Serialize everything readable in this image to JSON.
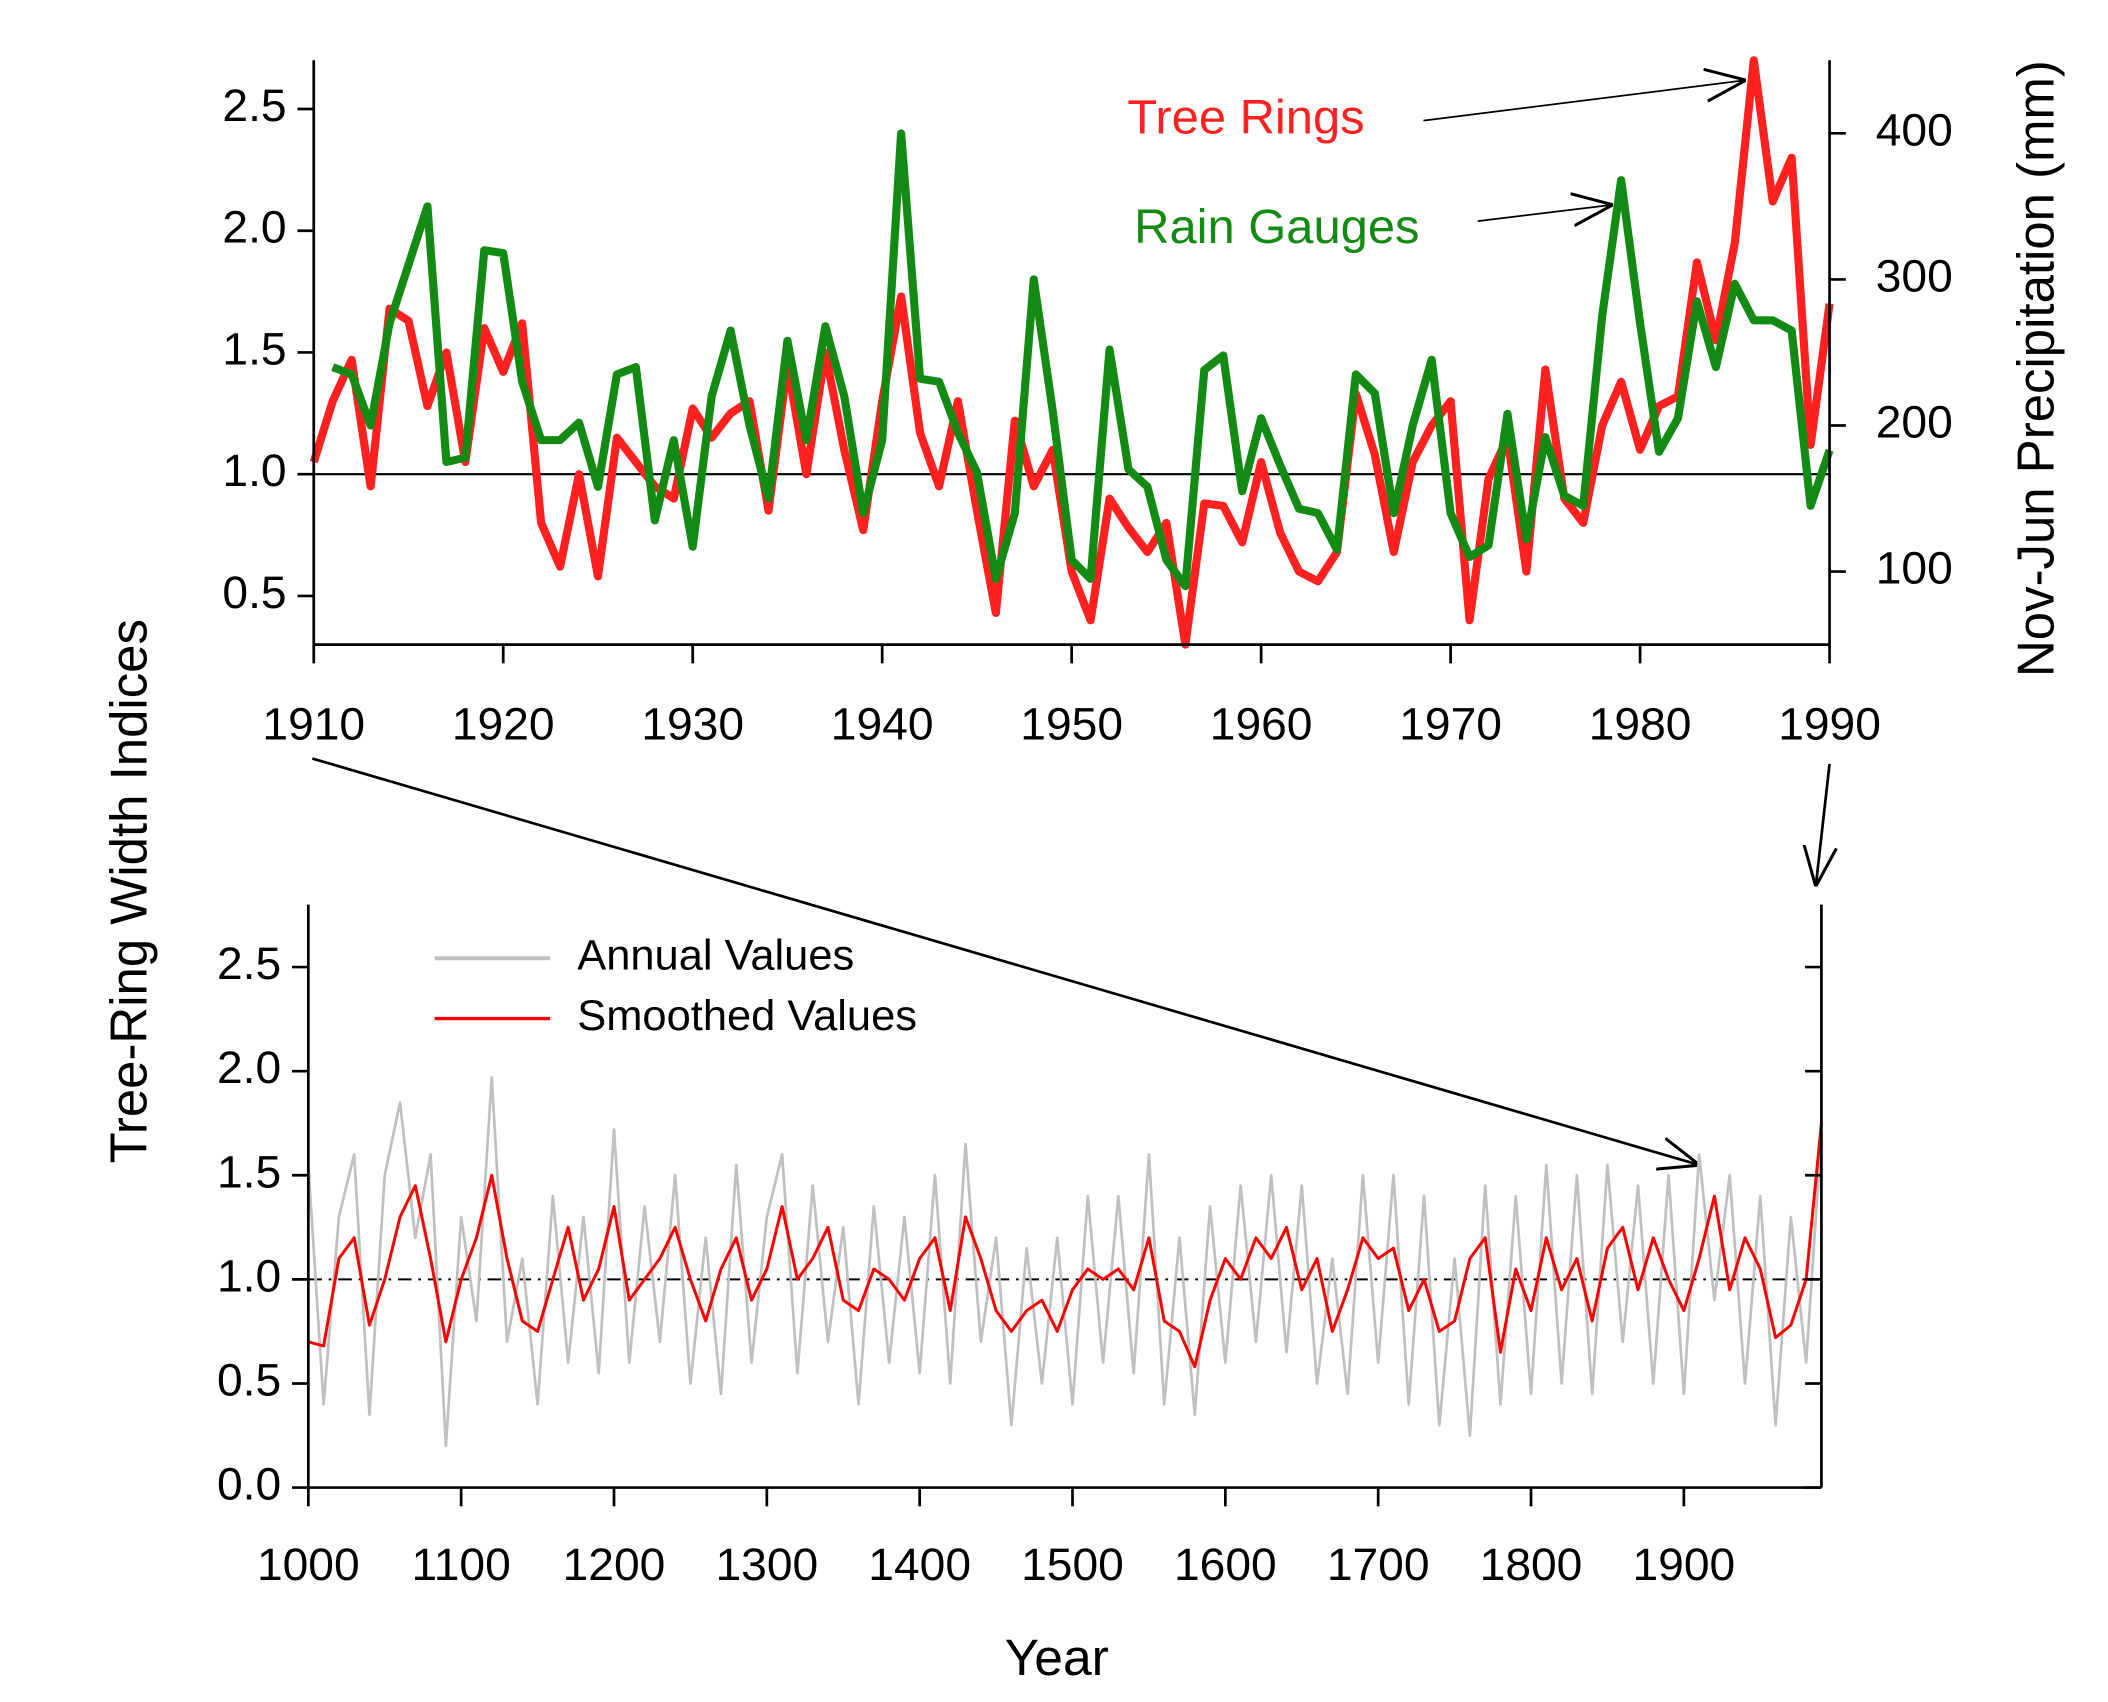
{
  "chart_data": [
    {
      "type": "line",
      "ylabel": "Tree-Ring Width Indices",
      "y2label": "Nov-Jun Precipitation (mm)",
      "xlim": [
        1910,
        1990
      ],
      "xticks": [
        1910,
        1920,
        1930,
        1940,
        1950,
        1960,
        1970,
        1980,
        1990
      ],
      "ylim": [
        0.3,
        2.7
      ],
      "yticks": [
        0.5,
        {
          "value": 1,
          "label": "1.0"
        },
        1.5,
        {
          "value": 2,
          "label": "2.0"
        },
        2.5
      ],
      "y2lim": [
        50,
        450
      ],
      "y2ticks": [
        100,
        200,
        300,
        400
      ],
      "hline": 1,
      "series": [
        {
          "name": "Tree Rings",
          "color": "#ff2020",
          "x": [
            1910,
            1911,
            1912,
            1913,
            1914,
            1915,
            1916,
            1917,
            1918,
            1919,
            1920,
            1921,
            1922,
            1923,
            1924,
            1925,
            1926,
            1927,
            1928,
            1929,
            1930,
            1931,
            1932,
            1933,
            1934,
            1935,
            1936,
            1937,
            1938,
            1939,
            1940,
            1941,
            1942,
            1943,
            1944,
            1945,
            1946,
            1947,
            1948,
            1949,
            1950,
            1951,
            1952,
            1953,
            1954,
            1955,
            1956,
            1957,
            1958,
            1959,
            1960,
            1961,
            1962,
            1963,
            1964,
            1965,
            1966,
            1967,
            1968,
            1969,
            1970,
            1971,
            1972,
            1973,
            1974,
            1975,
            1976,
            1977,
            1978,
            1979,
            1980,
            1981,
            1982,
            1983,
            1984,
            1985,
            1986,
            1987,
            1988,
            1989,
            1990
          ],
          "values": [
            1.05,
            1.3,
            1.47,
            0.95,
            1.68,
            1.63,
            1.28,
            1.5,
            1.05,
            1.6,
            1.42,
            1.62,
            0.8,
            0.62,
            1.0,
            0.58,
            1.15,
            1.05,
            0.95,
            0.9,
            1.27,
            1.15,
            1.25,
            1.3,
            0.85,
            1.45,
            1.0,
            1.5,
            1.1,
            0.77,
            1.3,
            1.73,
            1.17,
            0.95,
            1.3,
            0.85,
            0.43,
            1.22,
            0.95,
            1.1,
            0.6,
            0.4,
            0.9,
            0.78,
            0.68,
            0.8,
            0.3,
            0.88,
            0.87,
            0.72,
            1.05,
            0.76,
            0.6,
            0.56,
            0.68,
            1.33,
            1.08,
            0.68,
            1.05,
            1.2,
            1.3,
            0.4,
            0.98,
            1.15,
            0.6,
            1.43,
            0.9,
            0.8,
            1.2,
            1.38,
            1.1,
            1.28,
            1.32,
            1.87,
            1.55,
            1.95,
            2.7,
            2.12,
            2.3,
            1.12,
            1.7
          ]
        },
        {
          "name": "Rain Gauges",
          "color": "#138a13",
          "axis": "y2",
          "x": [
            1911,
            1912,
            1913,
            1914,
            1915,
            1916,
            1917,
            1918,
            1919,
            1920,
            1921,
            1922,
            1923,
            1924,
            1925,
            1926,
            1927,
            1928,
            1929,
            1930,
            1931,
            1932,
            1933,
            1934,
            1935,
            1936,
            1937,
            1938,
            1939,
            1940,
            1941,
            1942,
            1943,
            1944,
            1945,
            1946,
            1947,
            1948,
            1949,
            1950,
            1951,
            1952,
            1953,
            1954,
            1955,
            1956,
            1957,
            1958,
            1959,
            1960,
            1961,
            1962,
            1963,
            1964,
            1965,
            1966,
            1967,
            1968,
            1969,
            1970,
            1971,
            1972,
            1973,
            1974,
            1975,
            1976,
            1977,
            1978,
            1979,
            1980,
            1981,
            1982,
            1983,
            1984,
            1985,
            1986,
            1987,
            1988,
            1989,
            1990
          ],
          "values": [
            240,
            235,
            200,
            270,
            310,
            350,
            175,
            178,
            320,
            318,
            230,
            190,
            190,
            202,
            158,
            235,
            240,
            135,
            190,
            117,
            220,
            265,
            200,
            150,
            258,
            190,
            268,
            220,
            140,
            190,
            400,
            232,
            230,
            195,
            168,
            95,
            140,
            300,
            210,
            108,
            95,
            252,
            170,
            158,
            108,
            90,
            238,
            248,
            155,
            205,
            173,
            143,
            140,
            115,
            235,
            222,
            140,
            200,
            245,
            140,
            110,
            118,
            208,
            122,
            192,
            152,
            145,
            275,
            368,
            270,
            182,
            205,
            285,
            240,
            297,
            272,
            272,
            265,
            145,
            183
          ]
        }
      ]
    },
    {
      "type": "line",
      "xlabel": "Year",
      "xlim": [
        1000,
        1990
      ],
      "xticks": [
        1000,
        1100,
        1200,
        1300,
        1400,
        1500,
        1600,
        1700,
        1800,
        1900
      ],
      "ylim": [
        0,
        2.8
      ],
      "yticks": [
        {
          "value": 0,
          "label": "0.0"
        },
        0.5,
        {
          "value": 1,
          "label": "1.0"
        },
        1.5,
        {
          "value": 2,
          "label": "2.0"
        },
        2.5
      ],
      "hline": 1,
      "series": [
        {
          "name": "Annual Values",
          "color": "#c0c0c0",
          "x": [
            1000,
            1010,
            1020,
            1030,
            1040,
            1050,
            1060,
            1070,
            1080,
            1090,
            1100,
            1110,
            1120,
            1130,
            1140,
            1150,
            1160,
            1170,
            1180,
            1190,
            1200,
            1210,
            1220,
            1230,
            1240,
            1250,
            1260,
            1270,
            1280,
            1290,
            1300,
            1310,
            1320,
            1330,
            1340,
            1350,
            1360,
            1370,
            1380,
            1390,
            1400,
            1410,
            1420,
            1430,
            1440,
            1450,
            1460,
            1470,
            1480,
            1490,
            1500,
            1510,
            1520,
            1530,
            1540,
            1550,
            1560,
            1570,
            1580,
            1590,
            1600,
            1610,
            1620,
            1630,
            1640,
            1650,
            1660,
            1670,
            1680,
            1690,
            1700,
            1710,
            1720,
            1730,
            1740,
            1750,
            1760,
            1770,
            1780,
            1790,
            1800,
            1810,
            1820,
            1830,
            1840,
            1850,
            1860,
            1870,
            1880,
            1890,
            1900,
            1910,
            1920,
            1930,
            1940,
            1950,
            1960,
            1970,
            1980,
            1990
          ],
          "values": [
            1.55,
            0.4,
            1.3,
            1.6,
            0.35,
            1.5,
            1.85,
            1.2,
            1.6,
            0.2,
            1.3,
            0.8,
            1.97,
            0.7,
            1.1,
            0.4,
            1.4,
            0.6,
            1.3,
            0.55,
            1.72,
            0.6,
            1.35,
            0.7,
            1.5,
            0.5,
            1.2,
            0.45,
            1.55,
            0.6,
            1.3,
            1.6,
            0.55,
            1.45,
            0.7,
            1.25,
            0.4,
            1.35,
            0.6,
            1.3,
            0.55,
            1.5,
            0.5,
            1.65,
            0.7,
            1.2,
            0.3,
            1.15,
            0.5,
            1.2,
            0.4,
            1.4,
            0.6,
            1.4,
            0.55,
            1.6,
            0.4,
            1.2,
            0.35,
            1.35,
            0.6,
            1.45,
            0.7,
            1.5,
            0.65,
            1.45,
            0.5,
            1.1,
            0.45,
            1.5,
            0.6,
            1.5,
            0.4,
            1.4,
            0.3,
            1.1,
            0.25,
            1.45,
            0.4,
            1.4,
            0.45,
            1.55,
            0.5,
            1.5,
            0.45,
            1.55,
            0.7,
            1.45,
            0.5,
            1.5,
            0.45,
            1.6,
            0.9,
            1.5,
            0.5,
            1.4,
            0.3,
            1.3,
            0.6,
            1.7
          ]
        },
        {
          "name": "Smoothed Values",
          "color": "#ff0000",
          "x": [
            1000,
            1010,
            1020,
            1030,
            1040,
            1050,
            1060,
            1070,
            1080,
            1090,
            1100,
            1110,
            1120,
            1130,
            1140,
            1150,
            1160,
            1170,
            1180,
            1190,
            1200,
            1210,
            1220,
            1230,
            1240,
            1250,
            1260,
            1270,
            1280,
            1290,
            1300,
            1310,
            1320,
            1330,
            1340,
            1350,
            1360,
            1370,
            1380,
            1390,
            1400,
            1410,
            1420,
            1430,
            1440,
            1450,
            1460,
            1470,
            1480,
            1490,
            1500,
            1510,
            1520,
            1530,
            1540,
            1550,
            1560,
            1570,
            1580,
            1590,
            1600,
            1610,
            1620,
            1630,
            1640,
            1650,
            1660,
            1670,
            1680,
            1690,
            1700,
            1710,
            1720,
            1730,
            1740,
            1750,
            1760,
            1770,
            1780,
            1790,
            1800,
            1810,
            1820,
            1830,
            1840,
            1850,
            1860,
            1870,
            1880,
            1890,
            1900,
            1910,
            1920,
            1930,
            1940,
            1950,
            1960,
            1970,
            1980,
            1990
          ],
          "values": [
            0.7,
            0.68,
            1.1,
            1.2,
            0.78,
            1.0,
            1.3,
            1.45,
            1.1,
            0.7,
            1.0,
            1.2,
            1.5,
            1.1,
            0.8,
            0.75,
            1.0,
            1.25,
            0.9,
            1.05,
            1.35,
            0.9,
            1.0,
            1.1,
            1.25,
            1.0,
            0.8,
            1.05,
            1.2,
            0.9,
            1.05,
            1.35,
            1.0,
            1.1,
            1.25,
            0.9,
            0.85,
            1.05,
            1.0,
            0.9,
            1.1,
            1.2,
            0.85,
            1.3,
            1.1,
            0.85,
            0.75,
            0.85,
            0.9,
            0.75,
            0.95,
            1.05,
            1.0,
            1.05,
            0.95,
            1.2,
            0.8,
            0.75,
            0.58,
            0.9,
            1.1,
            1.0,
            1.2,
            1.1,
            1.25,
            0.95,
            1.1,
            0.75,
            0.95,
            1.2,
            1.1,
            1.15,
            0.85,
            1.0,
            0.75,
            0.8,
            1.1,
            1.2,
            0.65,
            1.05,
            0.85,
            1.2,
            0.95,
            1.1,
            0.8,
            1.15,
            1.25,
            0.95,
            1.2,
            1.0,
            0.85,
            1.1,
            1.4,
            0.95,
            1.2,
            1.05,
            0.72,
            0.78,
            1.0,
            1.75
          ]
        }
      ]
    }
  ]
}
